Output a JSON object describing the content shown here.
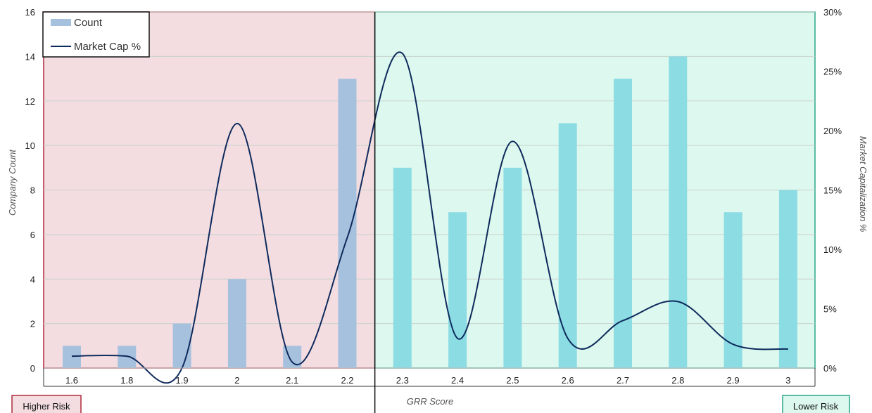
{
  "chart_data": {
    "type": "bar",
    "xlabel": "GRR Score",
    "ylabel": "Company Count",
    "y2label": "Market Capitalization %",
    "categories": [
      "1.6",
      "1.8",
      "1.9",
      "2",
      "2.1",
      "2.2",
      "2.3",
      "2.4",
      "2.5",
      "2.6",
      "2.7",
      "2.8",
      "2.9",
      "3"
    ],
    "ylim": [
      0,
      16
    ],
    "yticks": [
      "0",
      "2",
      "4",
      "6",
      "8",
      "10",
      "12",
      "14",
      "16"
    ],
    "y2lim": [
      0,
      30
    ],
    "y2ticks": [
      "0%",
      "5%",
      "10%",
      "15%",
      "20%",
      "25%",
      "30%"
    ],
    "grid": true,
    "legend_position": "top-left",
    "series": [
      {
        "name": "Count",
        "kind": "bar",
        "axis": "left",
        "values": [
          1,
          1,
          2,
          4,
          1,
          13,
          9,
          7,
          9,
          11,
          13,
          14,
          7,
          8
        ],
        "colors": [
          "#a6c1de",
          "#a6c1de",
          "#a6c1de",
          "#a6c1de",
          "#a6c1de",
          "#a6c1de",
          "#8cdce4",
          "#8cdce4",
          "#8cdce4",
          "#8cdce4",
          "#8cdce4",
          "#8cdce4",
          "#8cdce4",
          "#8cdce4"
        ]
      },
      {
        "name": "Market Cap %",
        "kind": "line",
        "axis": "right",
        "smooth": true,
        "color": "#0e2a5c",
        "values": [
          1.0,
          1.0,
          0.0,
          20.6,
          0.5,
          11.0,
          26.5,
          2.5,
          19.1,
          2.5,
          4.0,
          5.6,
          2.0,
          1.6
        ]
      }
    ],
    "zones": [
      {
        "label": "Higher Risk",
        "from": "1.6",
        "to": "2.2",
        "fill": "#f3dde1",
        "stroke": "#b02a3c"
      },
      {
        "label": "Lower Risk",
        "from": "2.3",
        "to": "3",
        "fill": "#ddf8ee",
        "stroke": "#2aa588"
      }
    ]
  }
}
